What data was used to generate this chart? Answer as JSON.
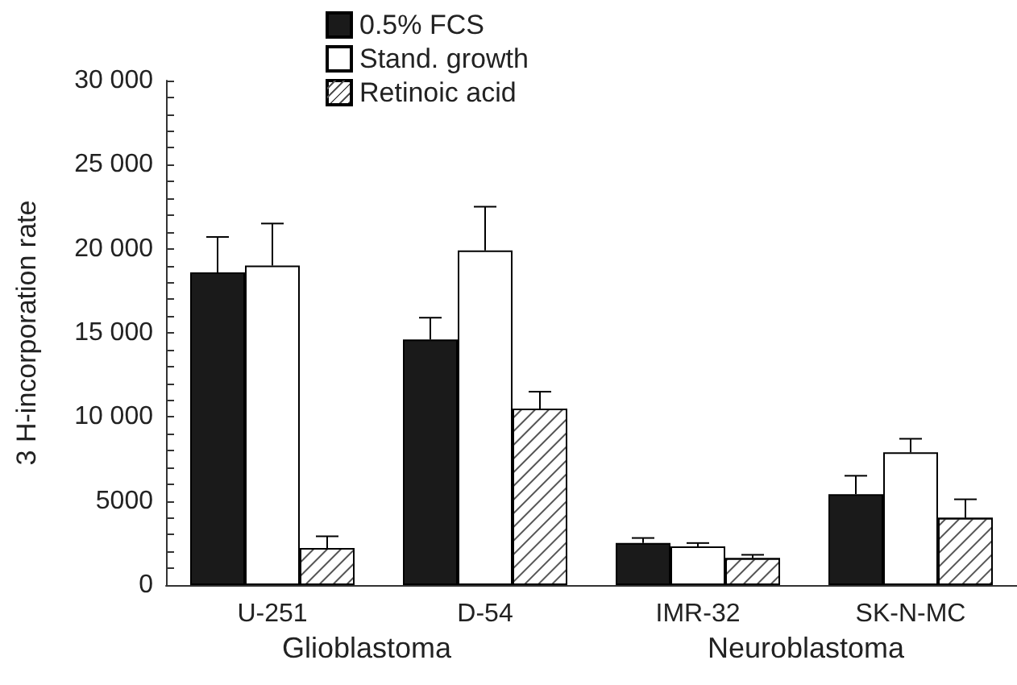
{
  "chart_data": {
    "type": "bar",
    "ylabel": "3 H-incorporation rate",
    "categories": [
      "U-251",
      "D-54",
      "IMR-32",
      "SK-N-MC"
    ],
    "series": [
      {
        "name": "0.5% FCS",
        "color": "#1a1a1a",
        "values": [
          18600,
          14600,
          2500,
          5400
        ],
        "errors": [
          [
            18600,
            20700
          ],
          [
            14600,
            15900
          ],
          [
            2500,
            2800
          ],
          [
            5400,
            6500
          ]
        ]
      },
      {
        "name": "Stand. growth",
        "color": "#ffffff",
        "values": [
          19000,
          19900,
          2300,
          7900
        ],
        "errors": [
          [
            19000,
            21500
          ],
          [
            19900,
            22500
          ],
          [
            2300,
            2500
          ],
          [
            7900,
            8700
          ]
        ]
      },
      {
        "name": "Retinoic acid",
        "color": "#ffffff",
        "values": [
          2200,
          10500,
          1600,
          4000
        ],
        "errors": [
          [
            2200,
            2900
          ],
          [
            10500,
            11500
          ],
          [
            1600,
            1800
          ],
          [
            4000,
            5100
          ]
        ]
      }
    ],
    "ylim": [
      0,
      30000
    ],
    "yticks": [
      {
        "value": 0,
        "label": "0"
      },
      {
        "value": 1000,
        "label": null
      },
      {
        "value": 2000,
        "label": null
      },
      {
        "value": 3000,
        "label": null
      },
      {
        "value": 4000,
        "label": null
      },
      {
        "value": 5000,
        "label": "5000"
      },
      {
        "value": 6000,
        "label": null
      },
      {
        "value": 7000,
        "label": null
      },
      {
        "value": 8000,
        "label": null
      },
      {
        "value": 9000,
        "label": null
      },
      {
        "value": 10000,
        "label": "10 000"
      },
      {
        "value": 11000,
        "label": null
      },
      {
        "value": 12000,
        "label": null
      },
      {
        "value": 13000,
        "label": null
      },
      {
        "value": 14000,
        "label": null
      },
      {
        "value": 15000,
        "label": "15 000"
      },
      {
        "value": 16000,
        "label": null
      },
      {
        "value": 17000,
        "label": null
      },
      {
        "value": 18000,
        "label": null
      },
      {
        "value": 19000,
        "label": null
      },
      {
        "value": 20000,
        "label": "20 000"
      },
      {
        "value": 21000,
        "label": null
      },
      {
        "value": 22000,
        "label": null
      },
      {
        "value": 23000,
        "label": null
      },
      {
        "value": 24000,
        "label": null
      },
      {
        "value": 25000,
        "label": "25 000"
      },
      {
        "value": 26000,
        "label": null
      },
      {
        "value": 27000,
        "label": null
      },
      {
        "value": 28000,
        "label": null
      },
      {
        "value": 29000,
        "label": null
      },
      {
        "value": 30000,
        "label": "30 000"
      }
    ],
    "annotations": [
      "Glioblastoma",
      "Neuroblastoma"
    ],
    "legend": "top",
    "grid": false
  }
}
